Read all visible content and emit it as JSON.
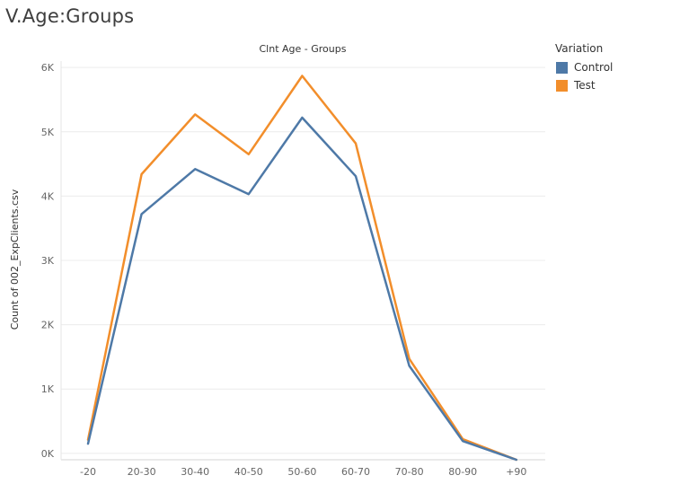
{
  "page": {
    "title": "V.Age:Groups"
  },
  "legend": {
    "title": "Variation",
    "items": [
      {
        "label": "Control",
        "color": "#4e79a7"
      },
      {
        "label": "Test",
        "color": "#f28e2b"
      }
    ]
  },
  "chart_data": {
    "type": "line",
    "title": "Clnt Age - Groups",
    "xlabel": "",
    "ylabel": "Count of 002_ExpClients.csv",
    "categories": [
      "-20",
      "20-30",
      "30-40",
      "40-50",
      "50-60",
      "60-70",
      "70-80",
      "80-90",
      "+90"
    ],
    "series": [
      {
        "name": "Control",
        "color": "#4e79a7",
        "values": [
          150,
          3720,
          4420,
          4030,
          5220,
          4310,
          1360,
          190,
          -100
        ]
      },
      {
        "name": "Test",
        "color": "#f28e2b",
        "values": [
          210,
          4340,
          5270,
          4650,
          5870,
          4820,
          1470,
          220,
          -100
        ]
      }
    ],
    "ylim": [
      -100,
      6100
    ],
    "yticks": [
      0,
      1000,
      2000,
      3000,
      4000,
      5000,
      6000
    ],
    "ytick_labels": [
      "0K",
      "1K",
      "2K",
      "3K",
      "4K",
      "5K",
      "6K"
    ],
    "grid": true,
    "legend_position": "top-right"
  }
}
